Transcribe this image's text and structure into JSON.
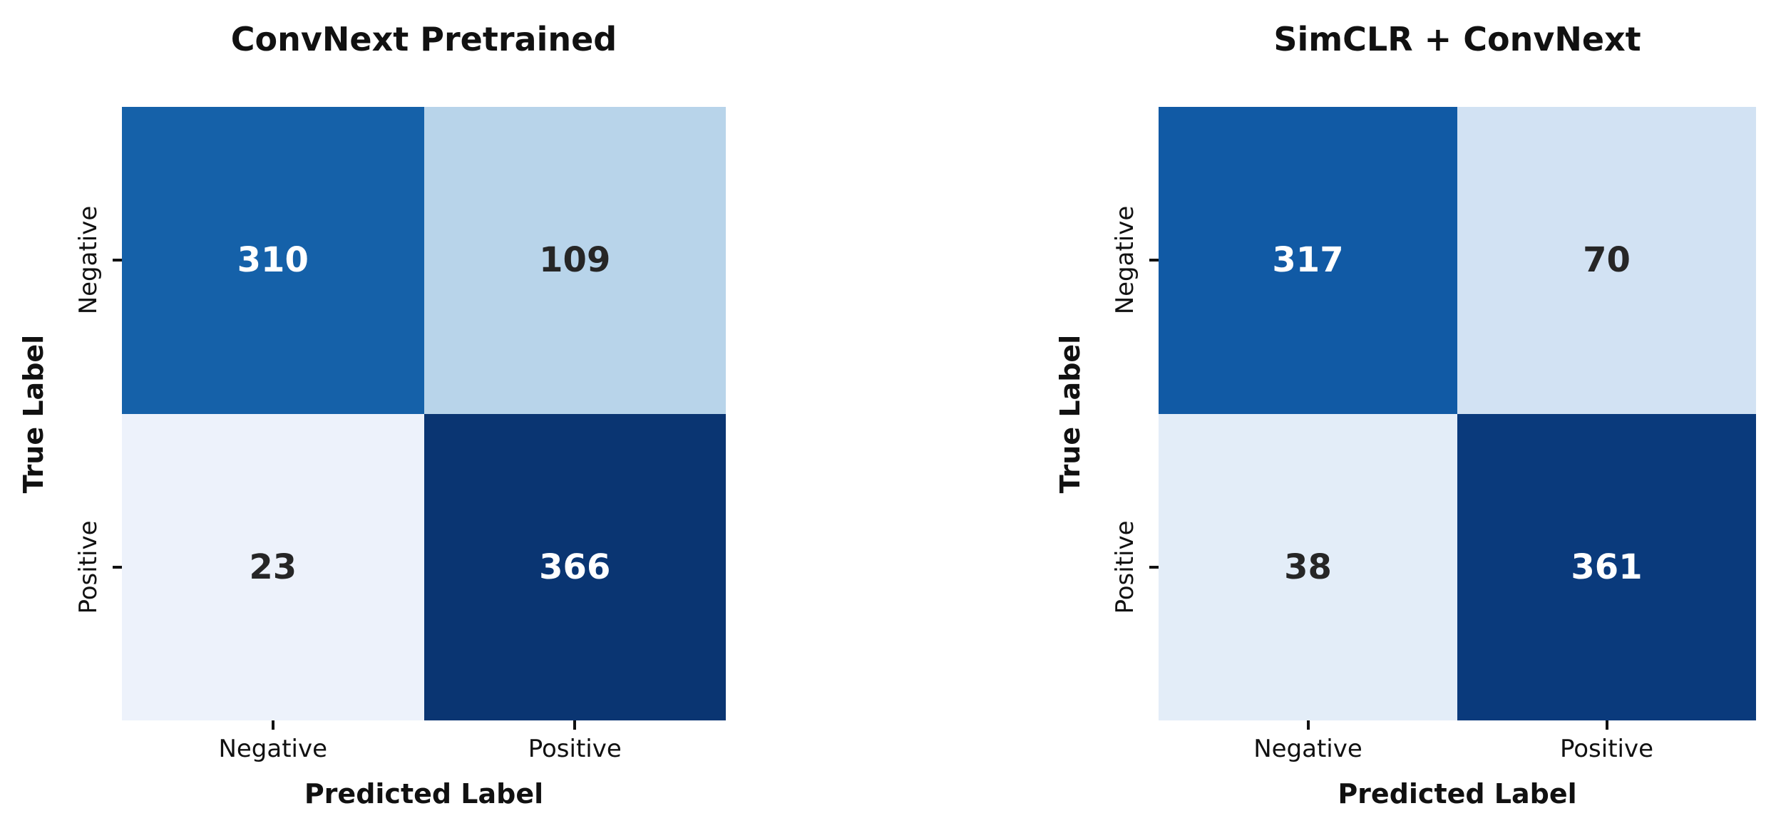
{
  "figure": {
    "background": "#ffffff"
  },
  "chart_data": [
    {
      "type": "heatmap",
      "title": "ConvNext Pretrained",
      "xlabel": "Predicted Label",
      "ylabel": "True Label",
      "x_categories": [
        "Negative",
        "Positive"
      ],
      "y_categories": [
        "Negative",
        "Positive"
      ],
      "matrix": [
        [
          310,
          109
        ],
        [
          23,
          366
        ]
      ],
      "cell_colors": [
        [
          "#1561a9",
          "#b8d4ea"
        ],
        [
          "#edf2fb",
          "#0a3572"
        ]
      ],
      "cell_text_colors": [
        [
          "#ffffff",
          "#262626"
        ],
        [
          "#262626",
          "#ffffff"
        ]
      ]
    },
    {
      "type": "heatmap",
      "title": "SimCLR + ConvNext",
      "xlabel": "Predicted Label",
      "ylabel": "True Label",
      "x_categories": [
        "Negative",
        "Positive"
      ],
      "y_categories": [
        "Negative",
        "Positive"
      ],
      "matrix": [
        [
          317,
          70
        ],
        [
          38,
          361
        ]
      ],
      "cell_colors": [
        [
          "#115aa5",
          "#d2e2f3"
        ],
        [
          "#e3edf8",
          "#0a3a7c"
        ]
      ],
      "cell_text_colors": [
        [
          "#ffffff",
          "#262626"
        ],
        [
          "#262626",
          "#ffffff"
        ]
      ]
    }
  ]
}
